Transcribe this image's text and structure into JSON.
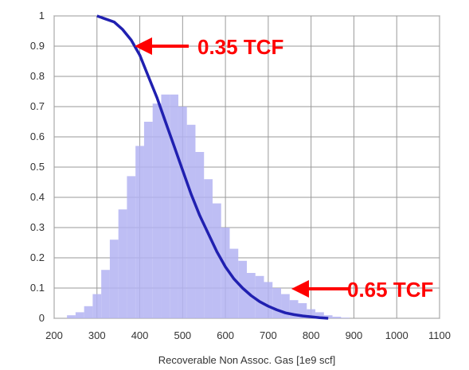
{
  "chart_data": {
    "type": "bar",
    "xlabel": "Recoverable Non Assoc. Gas [1e9 scf]",
    "ylabel": "",
    "xlim": [
      200,
      1100
    ],
    "ylim": [
      0,
      1
    ],
    "grid": true,
    "x_ticks": [
      "200",
      "300",
      "400",
      "500",
      "600",
      "700",
      "800",
      "900",
      "1000",
      "1100"
    ],
    "y_ticks": [
      "0",
      "0.1",
      "0.2",
      "0.3",
      "0.4",
      "0.5",
      "0.6",
      "0.7",
      "0.8",
      "0.9",
      "1"
    ],
    "histogram": {
      "bin_width": 20,
      "x": [
        240,
        260,
        280,
        300,
        320,
        340,
        360,
        380,
        400,
        420,
        440,
        460,
        480,
        500,
        520,
        540,
        560,
        580,
        600,
        620,
        640,
        660,
        680,
        700,
        720,
        740,
        760,
        780,
        800,
        820,
        840,
        860,
        880
      ],
      "values": [
        0.01,
        0.02,
        0.04,
        0.08,
        0.16,
        0.26,
        0.36,
        0.47,
        0.57,
        0.65,
        0.71,
        0.74,
        0.74,
        0.7,
        0.64,
        0.55,
        0.46,
        0.38,
        0.3,
        0.23,
        0.19,
        0.15,
        0.14,
        0.12,
        0.1,
        0.08,
        0.06,
        0.05,
        0.03,
        0.02,
        0.01,
        0.005,
        0.002
      ],
      "color": "#b3b3f2"
    },
    "series": [
      {
        "type": "line",
        "color": "#2020b0",
        "x": [
          300,
          320,
          340,
          360,
          380,
          400,
          420,
          440,
          460,
          480,
          500,
          520,
          540,
          560,
          580,
          600,
          620,
          640,
          660,
          680,
          700,
          720,
          740,
          760,
          780,
          800,
          820,
          840
        ],
        "y": [
          1.0,
          0.99,
          0.98,
          0.955,
          0.92,
          0.87,
          0.8,
          0.73,
          0.65,
          0.57,
          0.49,
          0.41,
          0.34,
          0.28,
          0.22,
          0.17,
          0.13,
          0.1,
          0.075,
          0.055,
          0.04,
          0.028,
          0.018,
          0.012,
          0.008,
          0.005,
          0.002,
          0.0
        ]
      }
    ],
    "annotations": [
      {
        "text": "0.35 TCF",
        "color": "#ff0000"
      },
      {
        "text": "0.65 TCF",
        "color": "#ff0000"
      }
    ]
  }
}
